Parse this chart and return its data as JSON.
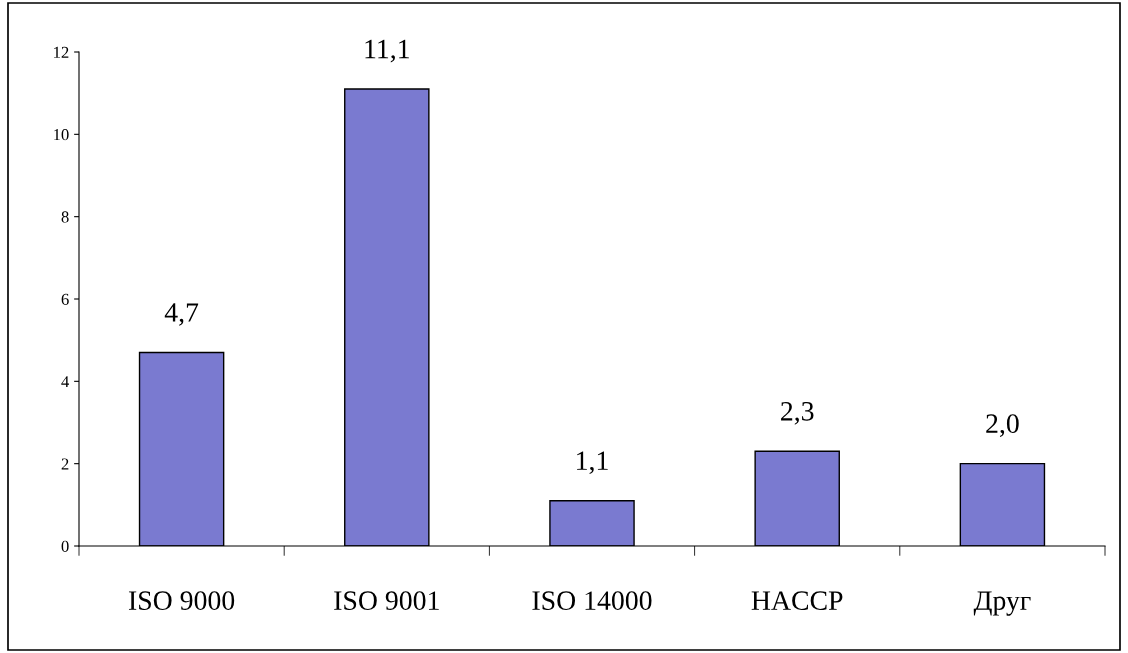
{
  "chart_data": {
    "type": "bar",
    "categories": [
      "ISO 9000",
      "ISO 9001",
      "ISO 14000",
      "HACCP",
      "Друг"
    ],
    "values": [
      4.7,
      11.1,
      1.1,
      2.3,
      2.0
    ],
    "value_labels": [
      "4,7",
      "11,1",
      "1,1",
      "2,3",
      "2,0"
    ],
    "color": "#7a7ad0",
    "ylim": [
      0,
      12
    ],
    "yticks": [
      0,
      2,
      4,
      6,
      8,
      10,
      12
    ],
    "grid": false,
    "legend": false
  }
}
